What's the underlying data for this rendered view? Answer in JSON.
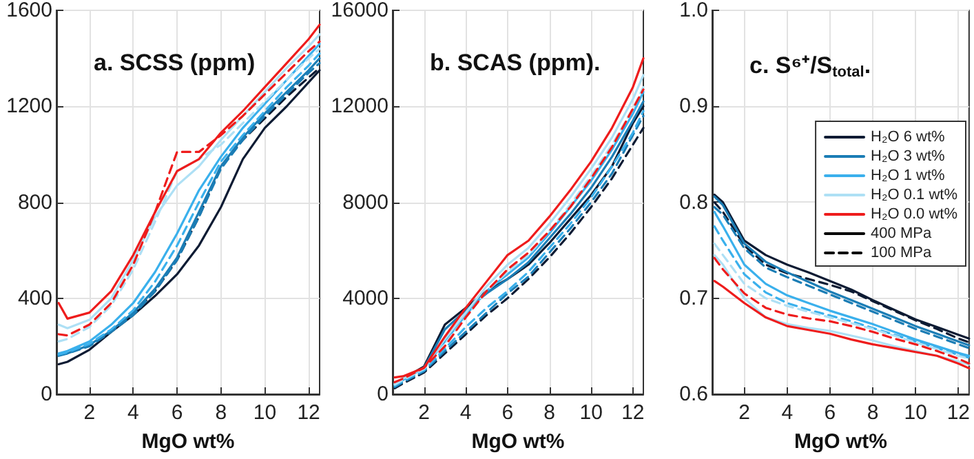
{
  "chart_data": [
    {
      "type": "line",
      "title": "a. SCSS (ppm)",
      "xlabel": "MgO wt%",
      "x": [
        0.6,
        1,
        2,
        3,
        4,
        5,
        6,
        7,
        8,
        9,
        10,
        11,
        12,
        12.5
      ],
      "xlim": [
        0.5,
        12.5
      ],
      "xticks": [
        2,
        4,
        6,
        8,
        10,
        12
      ],
      "ylim": [
        0,
        1600
      ],
      "yticks": [
        0,
        400,
        800,
        1200,
        1600
      ],
      "grid": true,
      "legend": false,
      "series": [
        {
          "color": "#0d1b33",
          "line_style": "solid",
          "values": [
            125,
            135,
            185,
            260,
            330,
            410,
            500,
            620,
            780,
            980,
            1110,
            1200,
            1300,
            1350
          ]
        },
        {
          "color": "#0d1b33",
          "line_style": "dashed",
          "values": [
            165,
            175,
            205,
            265,
            335,
            430,
            560,
            740,
            950,
            1060,
            1150,
            1240,
            1320,
            1360
          ]
        },
        {
          "color": "#1b7db5",
          "line_style": "solid",
          "values": [
            165,
            170,
            205,
            265,
            340,
            440,
            570,
            760,
            950,
            1070,
            1170,
            1260,
            1350,
            1400
          ]
        },
        {
          "color": "#1b7db5",
          "line_style": "dashed",
          "values": [
            160,
            170,
            200,
            260,
            330,
            430,
            560,
            740,
            940,
            1060,
            1160,
            1250,
            1340,
            1380
          ]
        },
        {
          "color": "#3ab0ec",
          "line_style": "solid",
          "values": [
            170,
            180,
            220,
            290,
            380,
            510,
            670,
            850,
            990,
            1110,
            1210,
            1310,
            1410,
            1460
          ]
        },
        {
          "color": "#3ab0ec",
          "line_style": "dashed",
          "values": [
            165,
            175,
            210,
            270,
            350,
            470,
            620,
            800,
            970,
            1080,
            1180,
            1280,
            1370,
            1420
          ]
        },
        {
          "color": "#aee0f5",
          "line_style": "solid",
          "values": [
            290,
            275,
            310,
            400,
            560,
            740,
            870,
            950,
            1060,
            1160,
            1260,
            1360,
            1450,
            1500
          ]
        },
        {
          "color": "#aee0f5",
          "line_style": "dashed",
          "values": [
            220,
            230,
            280,
            370,
            520,
            720,
            930,
            980,
            1040,
            1130,
            1220,
            1310,
            1400,
            1440
          ]
        },
        {
          "color": "#ee1c1c",
          "line_style": "solid",
          "values": [
            380,
            315,
            340,
            430,
            580,
            760,
            930,
            980,
            1090,
            1180,
            1280,
            1380,
            1480,
            1540
          ]
        },
        {
          "color": "#ee1c1c",
          "line_style": "dashed",
          "values": [
            250,
            245,
            290,
            380,
            540,
            760,
            1010,
            1010,
            1080,
            1160,
            1250,
            1340,
            1430,
            1470
          ]
        }
      ]
    },
    {
      "type": "line",
      "title": "b. SCAS (ppm).",
      "xlabel": "MgO wt%",
      "x": [
        0.6,
        1,
        2,
        3,
        4,
        5,
        6,
        7,
        8,
        9,
        10,
        11,
        12,
        12.5
      ],
      "xlim": [
        0.5,
        12.5
      ],
      "xticks": [
        2,
        4,
        6,
        8,
        10,
        12
      ],
      "ylim": [
        0,
        16000
      ],
      "yticks": [
        0,
        4000,
        8000,
        12000,
        16000
      ],
      "grid": true,
      "legend": false,
      "series": [
        {
          "color": "#0d1b33",
          "line_style": "solid",
          "values": [
            450,
            650,
            1150,
            2900,
            3600,
            4300,
            4800,
            5400,
            6300,
            7300,
            8300,
            9500,
            11300,
            12000
          ]
        },
        {
          "color": "#0d1b33",
          "line_style": "dashed",
          "values": [
            250,
            450,
            900,
            1700,
            2500,
            3300,
            4000,
            4800,
            5700,
            6700,
            7800,
            9000,
            10400,
            11100
          ]
        },
        {
          "color": "#1b7db5",
          "line_style": "solid",
          "values": [
            400,
            600,
            1100,
            2700,
            3500,
            4200,
            4800,
            5500,
            6500,
            7500,
            8600,
            9900,
            11400,
            12200
          ]
        },
        {
          "color": "#1b7db5",
          "line_style": "dashed",
          "values": [
            300,
            500,
            950,
            1800,
            2600,
            3400,
            4200,
            4900,
            5900,
            6900,
            8000,
            9200,
            10800,
            11600
          ]
        },
        {
          "color": "#3ab0ec",
          "line_style": "solid",
          "values": [
            400,
            600,
            1100,
            2200,
            3300,
            4300,
            5000,
            5700,
            6700,
            7800,
            8900,
            10200,
            11700,
            12600
          ]
        },
        {
          "color": "#3ab0ec",
          "line_style": "dashed",
          "values": [
            350,
            550,
            1000,
            1900,
            2800,
            3600,
            4300,
            5100,
            6100,
            7100,
            8200,
            9500,
            10900,
            11800
          ]
        },
        {
          "color": "#aee0f5",
          "line_style": "solid",
          "values": [
            450,
            650,
            1100,
            2300,
            3400,
            4500,
            5400,
            6100,
            7100,
            8200,
            9400,
            10700,
            12300,
            13300
          ]
        },
        {
          "color": "#aee0f5",
          "line_style": "dashed",
          "values": [
            400,
            600,
            1050,
            2100,
            3200,
            4300,
            5100,
            5800,
            6800,
            7900,
            9100,
            10400,
            11900,
            12800
          ]
        },
        {
          "color": "#ee1c1c",
          "line_style": "solid",
          "values": [
            700,
            750,
            1100,
            2400,
            3600,
            4700,
            5800,
            6400,
            7400,
            8500,
            9700,
            11100,
            12800,
            14000
          ]
        },
        {
          "color": "#ee1c1c",
          "line_style": "dashed",
          "values": [
            500,
            650,
            1100,
            2000,
            3200,
            4300,
            5200,
            5900,
            6800,
            7800,
            9000,
            10300,
            11900,
            12700
          ]
        }
      ]
    },
    {
      "type": "line",
      "title": "c. S⁶⁺/S$_{total}$.",
      "xlabel": "MgO wt%",
      "x": [
        0.6,
        1,
        2,
        3,
        4,
        5,
        6,
        7,
        8,
        9,
        10,
        11,
        12,
        12.5
      ],
      "xlim": [
        0.5,
        12.5
      ],
      "xticks": [
        2,
        4,
        6,
        8,
        10,
        12
      ],
      "ylim": [
        0.6,
        1
      ],
      "yticks": [
        0.6,
        0.7,
        0.8,
        0.9,
        {
          "value": 1,
          "label": "1.0"
        }
      ],
      "grid": true,
      "legend": "right",
      "series": [
        {
          "name": "H₂O 6 wt%",
          "color": "#0d1b33",
          "line_style": "solid",
          "values": [
            0.808,
            0.8,
            0.76,
            0.745,
            0.735,
            0.727,
            0.718,
            0.709,
            0.698,
            0.688,
            0.678,
            0.67,
            0.662,
            0.658
          ]
        },
        {
          "color": "#0d1b33",
          "line_style": "dashed",
          "values": [
            0.8,
            0.79,
            0.755,
            0.735,
            0.726,
            0.72,
            0.714,
            0.707,
            0.697,
            0.687,
            0.677,
            0.668,
            0.658,
            0.654
          ]
        },
        {
          "name": "H₂O 3 wt%",
          "color": "#1b7db5",
          "line_style": "solid",
          "values": [
            0.806,
            0.797,
            0.757,
            0.738,
            0.727,
            0.717,
            0.707,
            0.698,
            0.689,
            0.68,
            0.671,
            0.663,
            0.655,
            0.651
          ]
        },
        {
          "color": "#1b7db5",
          "line_style": "dashed",
          "values": [
            0.795,
            0.787,
            0.752,
            0.732,
            0.722,
            0.713,
            0.704,
            0.695,
            0.686,
            0.677,
            0.668,
            0.66,
            0.652,
            0.648
          ]
        },
        {
          "name": "H₂O 1 wt%",
          "color": "#3ab0ec",
          "line_style": "solid",
          "values": [
            0.79,
            0.775,
            0.735,
            0.715,
            0.703,
            0.695,
            0.687,
            0.68,
            0.673,
            0.665,
            0.657,
            0.65,
            0.643,
            0.64
          ]
        },
        {
          "color": "#3ab0ec",
          "line_style": "dashed",
          "values": [
            0.775,
            0.76,
            0.725,
            0.706,
            0.695,
            0.688,
            0.682,
            0.676,
            0.669,
            0.662,
            0.655,
            0.648,
            0.641,
            0.638
          ]
        },
        {
          "name": "H₂O 0.1 wt%",
          "color": "#aee0f5",
          "line_style": "solid",
          "values": [
            0.745,
            0.735,
            0.7,
            0.68,
            0.673,
            0.669,
            0.666,
            0.661,
            0.656,
            0.65,
            0.645,
            0.64,
            0.634,
            0.631
          ]
        },
        {
          "color": "#aee0f5",
          "line_style": "dashed",
          "values": [
            0.757,
            0.745,
            0.715,
            0.7,
            0.692,
            0.686,
            0.68,
            0.674,
            0.668,
            0.661,
            0.654,
            0.647,
            0.64,
            0.637
          ]
        },
        {
          "name": "H₂O 0.0 wt%",
          "color": "#ee1c1c",
          "line_style": "solid",
          "values": [
            0.718,
            0.712,
            0.695,
            0.68,
            0.671,
            0.667,
            0.663,
            0.657,
            0.652,
            0.648,
            0.644,
            0.64,
            0.632,
            0.627
          ]
        },
        {
          "color": "#ee1c1c",
          "line_style": "dashed",
          "values": [
            0.742,
            0.73,
            0.705,
            0.69,
            0.683,
            0.679,
            0.676,
            0.671,
            0.665,
            0.658,
            0.652,
            0.645,
            0.637,
            0.632
          ]
        },
        {
          "name": "400 MPa",
          "color": "#000000",
          "line_style": "solid",
          "values": [
            null,
            null,
            null,
            null,
            null,
            null,
            null,
            null,
            null,
            null,
            null,
            null,
            null,
            null
          ]
        },
        {
          "name": "100 MPa",
          "color": "#000000",
          "line_style": "dashed",
          "values": [
            null,
            null,
            null,
            null,
            null,
            null,
            null,
            null,
            null,
            null,
            null,
            null,
            null,
            null
          ]
        }
      ]
    }
  ]
}
